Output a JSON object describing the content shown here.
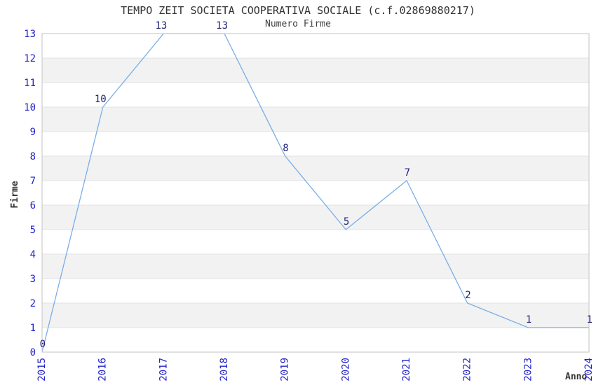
{
  "header": {
    "title": "TEMPO ZEIT SOCIETA COOPERATIVA SOCIALE (c.f.02869880217)",
    "subtitle": "Numero Firme"
  },
  "axes": {
    "y_label": "Firme",
    "x_label": "Anno"
  },
  "chart_data": {
    "type": "line",
    "title": "TEMPO ZEIT SOCIETA COOPERATIVA SOCIALE (c.f.02869880217)",
    "subtitle": "Numero Firme",
    "xlabel": "Anno",
    "ylabel": "Firme",
    "x": [
      2015,
      2016,
      2017,
      2018,
      2019,
      2020,
      2021,
      2022,
      2023,
      2024
    ],
    "values": [
      0,
      10,
      13,
      13,
      8,
      5,
      7,
      2,
      1,
      1
    ],
    "point_labels": [
      "0",
      "10",
      "13",
      "13",
      "8",
      "5",
      "7",
      "2",
      "1",
      "1"
    ],
    "x_ticks": [
      "2015",
      "2016",
      "2017",
      "2018",
      "2019",
      "2020",
      "2021",
      "2022",
      "2023",
      "2024"
    ],
    "y_ticks": [
      0,
      1,
      2,
      3,
      4,
      5,
      6,
      7,
      8,
      9,
      10,
      11,
      12,
      13
    ],
    "ylim": [
      0,
      13
    ],
    "x_tick_rotation": 90,
    "grid": "horizontal",
    "band_fill": "alternating",
    "legend": "none",
    "colors": {
      "line": "#79aee6",
      "tick_label": "#2222cc",
      "point_label": "#1f1f78",
      "band": "#f2f2f2",
      "gridline": "#e3e3e3",
      "border": "#cdcdcd",
      "title_text": "#333333",
      "axis_label_text": "#333333"
    }
  }
}
